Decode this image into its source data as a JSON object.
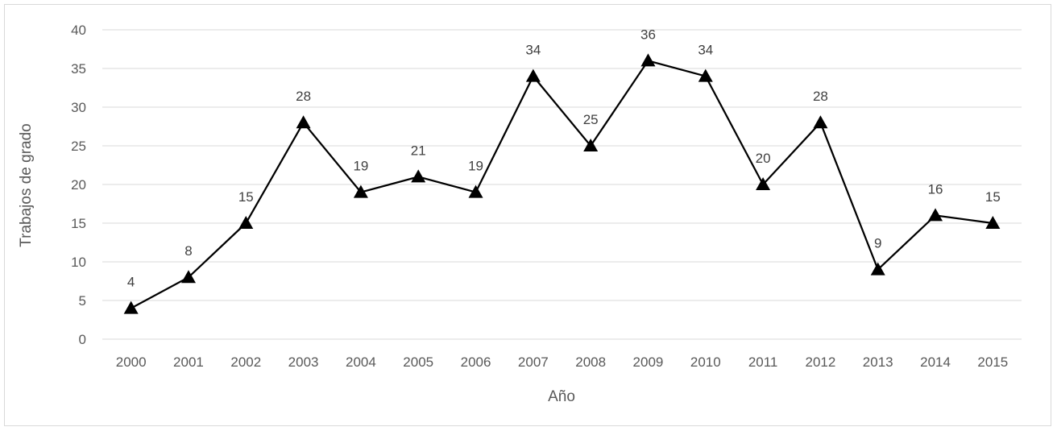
{
  "chart_data": {
    "type": "line",
    "title": "",
    "xlabel": "Año",
    "ylabel": "Trabajos de grado",
    "categories": [
      "2000",
      "2001",
      "2002",
      "2003",
      "2004",
      "2005",
      "2006",
      "2007",
      "2008",
      "2009",
      "2010",
      "2011",
      "2012",
      "2013",
      "2014",
      "2015"
    ],
    "series": [
      {
        "values": [
          4,
          8,
          15,
          28,
          19,
          21,
          19,
          34,
          25,
          36,
          34,
          20,
          28,
          9,
          16,
          15
        ]
      }
    ],
    "ylim": [
      0,
      40
    ],
    "yticks": [
      0,
      5,
      10,
      15,
      20,
      25,
      30,
      35,
      40
    ],
    "grid": true,
    "legend": "none",
    "marker": "triangle",
    "colors": {
      "line": "#000000",
      "grid": "#d9d9d9",
      "text": "#595959"
    }
  }
}
